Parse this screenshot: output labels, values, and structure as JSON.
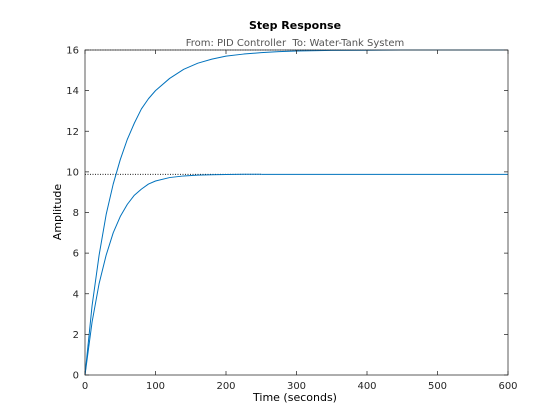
{
  "chart_data": {
    "type": "line",
    "title": "Step Response",
    "subtitle": "From: PID Controller  To: Water-Tank System",
    "xlabel": "Time (seconds)",
    "ylabel": "Amplitude",
    "xlim": [
      0,
      600
    ],
    "ylim": [
      0,
      16
    ],
    "xticks": [
      0,
      100,
      200,
      300,
      400,
      500,
      600
    ],
    "yticks": [
      0,
      2,
      4,
      6,
      8,
      10,
      12,
      14,
      16
    ],
    "grid": false,
    "line_color": "#0072BD",
    "steady_state_color": "#000000",
    "series": [
      {
        "x": [
          0,
          10,
          20,
          30,
          40,
          50,
          60,
          70,
          80,
          90,
          100,
          120,
          140,
          160,
          180,
          200,
          225,
          250,
          275,
          300,
          350,
          400,
          450,
          490
        ],
        "values": [
          0,
          3.4,
          5.9,
          7.9,
          9.4,
          10.6,
          11.6,
          12.4,
          13.1,
          13.6,
          14.0,
          14.6,
          15.05,
          15.35,
          15.55,
          15.7,
          15.8,
          15.87,
          15.92,
          15.95,
          15.98,
          15.99,
          16.0,
          16.0
        ],
        "steady_state": 16.0,
        "steady_state_x_end": 490
      },
      {
        "x": [
          0,
          10,
          20,
          30,
          40,
          50,
          60,
          70,
          80,
          90,
          100,
          120,
          140,
          160,
          180,
          200,
          225,
          250
        ],
        "values": [
          0,
          2.6,
          4.5,
          5.9,
          7.0,
          7.8,
          8.4,
          8.85,
          9.15,
          9.4,
          9.55,
          9.72,
          9.8,
          9.84,
          9.86,
          9.87,
          9.88,
          9.88
        ],
        "steady_state": 9.88,
        "steady_state_x_end": 250
      }
    ]
  }
}
